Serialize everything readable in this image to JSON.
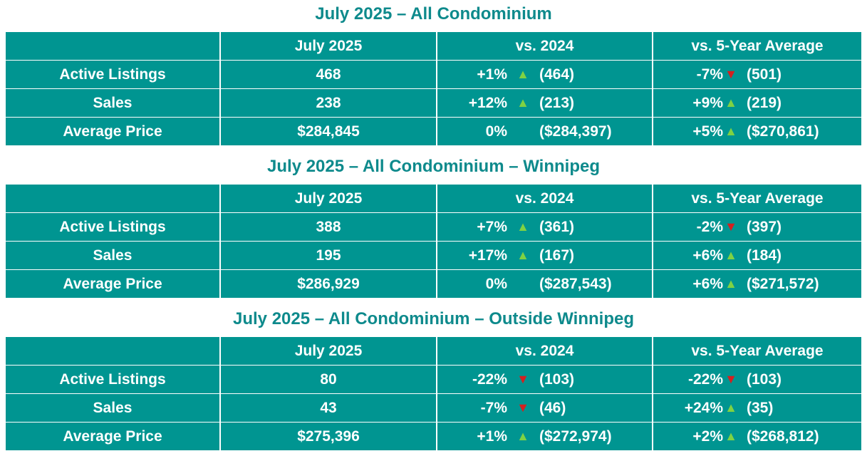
{
  "colors": {
    "table_fill": "#009591",
    "title_text": "#0e8a8c",
    "up_arrow": "#7fd243",
    "down_arrow": "#d42020"
  },
  "icons": {
    "up": "triangle-up-icon",
    "down": "triangle-down-icon"
  },
  "arrow_glyphs": {
    "up": "▲",
    "down": "▼"
  },
  "sections": [
    {
      "title": "July 2025 – All Condominium",
      "headers": [
        "",
        "July 2025",
        "vs. 2024",
        "vs. 5-Year Average"
      ],
      "rows": [
        {
          "label": "Active Listings",
          "value": "468",
          "vs2024": {
            "pct": "+1%",
            "dir": "up",
            "ref": "(464)"
          },
          "vs5yr": {
            "pct": "-7%",
            "dir": "down",
            "ref": "(501)"
          }
        },
        {
          "label": "Sales",
          "value": "238",
          "vs2024": {
            "pct": "+12%",
            "dir": "up",
            "ref": "(213)"
          },
          "vs5yr": {
            "pct": "+9%",
            "dir": "up",
            "ref": "(219)"
          }
        },
        {
          "label": "Average Price",
          "value": "$284,845",
          "vs2024": {
            "pct": "0%",
            "dir": "none",
            "ref": "($284,397)"
          },
          "vs5yr": {
            "pct": "+5%",
            "dir": "up",
            "ref": "($270,861)"
          }
        }
      ]
    },
    {
      "title": "July 2025 – All Condominium – Winnipeg",
      "headers": [
        "",
        "July 2025",
        "vs. 2024",
        "vs. 5-Year Average"
      ],
      "rows": [
        {
          "label": "Active Listings",
          "value": "388",
          "vs2024": {
            "pct": "+7%",
            "dir": "up",
            "ref": "(361)"
          },
          "vs5yr": {
            "pct": "-2%",
            "dir": "down",
            "ref": "(397)"
          }
        },
        {
          "label": "Sales",
          "value": "195",
          "vs2024": {
            "pct": "+17%",
            "dir": "up",
            "ref": "(167)"
          },
          "vs5yr": {
            "pct": "+6%",
            "dir": "up",
            "ref": "(184)"
          }
        },
        {
          "label": "Average Price",
          "value": "$286,929",
          "vs2024": {
            "pct": "0%",
            "dir": "none",
            "ref": "($287,543)"
          },
          "vs5yr": {
            "pct": "+6%",
            "dir": "up",
            "ref": "($271,572)"
          }
        }
      ]
    },
    {
      "title": "July 2025 – All Condominium – Outside Winnipeg",
      "headers": [
        "",
        "July 2025",
        "vs. 2024",
        "vs. 5-Year Average"
      ],
      "rows": [
        {
          "label": "Active Listings",
          "value": "80",
          "vs2024": {
            "pct": "-22%",
            "dir": "down",
            "ref": "(103)"
          },
          "vs5yr": {
            "pct": "-22%",
            "dir": "down",
            "ref": "(103)"
          }
        },
        {
          "label": "Sales",
          "value": "43",
          "vs2024": {
            "pct": "-7%",
            "dir": "down",
            "ref": "(46)"
          },
          "vs5yr": {
            "pct": "+24%",
            "dir": "up",
            "ref": "(35)"
          }
        },
        {
          "label": "Average Price",
          "value": "$275,396",
          "vs2024": {
            "pct": "+1%",
            "dir": "up",
            "ref": "($272,974)"
          },
          "vs5yr": {
            "pct": "+2%",
            "dir": "up",
            "ref": "($268,812)"
          }
        }
      ]
    }
  ]
}
